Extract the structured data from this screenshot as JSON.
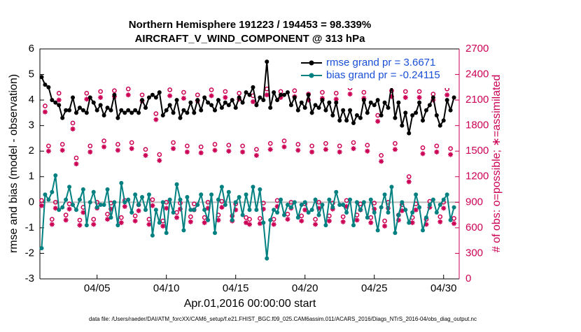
{
  "chart_data": {
    "type": "line",
    "title": "Northern Hemisphere 191223 / 194453 = 98.339%",
    "subtitle": "AIRCRAFT_V_WIND_COMPONENT @ 313 hPa",
    "xlabel": "Apr.01,2016 00:00:00 start",
    "ylabel": "rmse and bias (model - observation)",
    "y2label": "# of obs: o=possible; ∗=assimilated",
    "footnote": "data file: /Users/raeder/DAI/ATM_forcXX/CAM6_setup/f.e21.FHIST_BGC.f09_025.CAM6assim.011/ACARS_2016/Diags_NTrS_2016-04/obs_diag_output.nc",
    "xlim": [
      0.875,
      31.125
    ],
    "xticks": [
      {
        "value": 5,
        "label": "04/05"
      },
      {
        "value": 10,
        "label": "04/10"
      },
      {
        "value": 15,
        "label": "04/15"
      },
      {
        "value": 20,
        "label": "04/20"
      },
      {
        "value": 25,
        "label": "04/25"
      },
      {
        "value": 30,
        "label": "04/30"
      }
    ],
    "ylim": [
      -3,
      6
    ],
    "yticks": [
      -3,
      -2,
      -1,
      0,
      1,
      2,
      3,
      4,
      5,
      6
    ],
    "y2lim": [
      0,
      2700
    ],
    "y2ticks": [
      0,
      300,
      600,
      900,
      1200,
      1500,
      1800,
      2100,
      2400,
      2700
    ],
    "reference_line": 0,
    "legend": "upper right",
    "x": [
      1,
      1.25,
      1.5,
      1.75,
      2,
      2.25,
      2.5,
      2.75,
      3,
      3.25,
      3.5,
      3.75,
      4,
      4.25,
      4.5,
      4.75,
      5,
      5.25,
      5.5,
      5.75,
      6,
      6.25,
      6.5,
      6.75,
      7,
      7.25,
      7.5,
      7.75,
      8,
      8.25,
      8.5,
      8.75,
      9,
      9.25,
      9.5,
      9.75,
      10,
      10.25,
      10.5,
      10.75,
      11,
      11.25,
      11.5,
      11.75,
      12,
      12.25,
      12.5,
      12.75,
      13,
      13.25,
      13.5,
      13.75,
      14,
      14.25,
      14.5,
      14.75,
      15,
      15.25,
      15.5,
      15.75,
      16,
      16.25,
      16.5,
      16.75,
      17,
      17.25,
      17.5,
      17.75,
      18,
      18.25,
      18.5,
      18.75,
      19,
      19.25,
      19.5,
      19.75,
      20,
      20.25,
      20.5,
      20.75,
      21,
      21.25,
      21.5,
      21.75,
      22,
      22.25,
      22.5,
      22.75,
      23,
      23.25,
      23.5,
      23.75,
      24,
      24.25,
      24.5,
      24.75,
      25,
      25.25,
      25.5,
      25.75,
      26,
      26.25,
      26.5,
      26.75,
      27,
      27.25,
      27.5,
      27.75,
      28,
      28.25,
      28.5,
      28.75,
      29,
      29.25,
      29.5,
      29.75,
      30,
      30.25,
      30.5,
      30.75
    ],
    "series": [
      {
        "name": "rmse grand pr = 3.6671",
        "color": "#000000",
        "marker": "dot",
        "legend": true,
        "values": [
          4.9,
          4.6,
          4.5,
          4.0,
          3.9,
          3.8,
          3.3,
          3.6,
          3.6,
          4.1,
          3.5,
          3.7,
          3.6,
          3.5,
          4.1,
          3.9,
          3.6,
          3.8,
          3.4,
          3.7,
          3.6,
          4.2,
          3.3,
          3.6,
          3.5,
          3.6,
          3.5,
          3.6,
          3.5,
          4.0,
          3.7,
          4.1,
          4.2,
          4.1,
          4.3,
          3.4,
          3.6,
          3.8,
          3.5,
          4.0,
          3.3,
          3.6,
          3.5,
          3.9,
          3.5,
          4.0,
          3.6,
          4.1,
          3.9,
          3.8,
          3.6,
          4.0,
          3.7,
          3.9,
          3.8,
          4.0,
          3.7,
          4.1,
          3.9,
          4.3,
          4.2,
          4.5,
          3.8,
          4.1,
          4.0,
          5.5,
          3.7,
          4.3,
          4.0,
          4.2,
          4.2,
          4.3,
          3.8,
          4.1,
          3.6,
          3.9,
          3.7,
          4.2,
          3.5,
          3.8,
          3.7,
          4.0,
          3.6,
          3.9,
          3.4,
          3.9,
          3.2,
          3.6,
          3.2,
          3.6,
          3.1,
          3.4,
          3.3,
          4.0,
          3.5,
          3.9,
          3.8,
          4.0,
          3.4,
          3.9,
          3.7,
          4.6,
          3.3,
          3.9,
          3.0,
          3.5,
          2.7,
          3.4,
          3.5,
          3.9,
          3.2,
          3.6,
          3.8,
          4.1,
          3.4,
          3.0,
          3.2,
          4.0,
          3.6,
          4.1
        ]
      },
      {
        "name": "bias grand pr = -0.24115",
        "color": "#008080",
        "marker": "dot",
        "legend": true,
        "values": [
          -1.8,
          0.3,
          0.1,
          0.4,
          1.05,
          -0.3,
          -0.2,
          0.1,
          0.6,
          -0.1,
          -0.3,
          0.1,
          0.5,
          -0.9,
          0.0,
          0.4,
          -0.2,
          -0.1,
          -0.1,
          0.5,
          -0.6,
          0.0,
          -0.9,
          0.75,
          0.0,
          0.1,
          -0.4,
          0.3,
          -0.1,
          0.2,
          -0.3,
          0.3,
          -1.3,
          -0.3,
          -0.8,
          0.0,
          -1.2,
          0.1,
          -0.4,
          0.7,
          0.1,
          -1.1,
          0.2,
          -0.3,
          -0.3,
          -0.1,
          0.3,
          -0.3,
          -0.7,
          0.3,
          -1.2,
          0.1,
          0.6,
          -0.1,
          0.4,
          -0.7,
          0.0,
          0.2,
          -0.5,
          0.3,
          -0.3,
          0.6,
          -0.3,
          0.5,
          -0.8,
          -2.2,
          -0.7,
          -0.3,
          -0.4,
          0.1,
          -0.5,
          -0.1,
          -0.2,
          0.0,
          -0.6,
          -0.1,
          0.0,
          -0.4,
          -0.3,
          0.1,
          -0.5,
          -0.1,
          -0.9,
          0.1,
          -0.2,
          0.4,
          -0.1,
          -0.1,
          -0.4,
          0.1,
          -0.9,
          0.0,
          -0.3,
          0.0,
          -0.6,
          0.1,
          -0.4,
          -1.1,
          -0.2,
          0.3,
          -0.4,
          0.6,
          -1.2,
          -0.5,
          0.0,
          -0.3,
          -0.8,
          -0.4,
          0.3,
          -0.2,
          -1.1,
          -0.6,
          -0.1,
          0.1,
          -0.4,
          -0.1,
          0.1,
          0.3,
          -0.7,
          -0.2
        ]
      },
      {
        "name": "possible",
        "color": "#cc0055",
        "marker": "circle",
        "axis": "y2",
        "legend": false,
        "values": [
          920,
          2030,
          1560,
          700,
          900,
          2180,
          1580,
          750,
          880,
          1830,
          1420,
          690,
          840,
          2180,
          1560,
          700,
          900,
          2200,
          1620,
          760,
          890,
          2210,
          1580,
          720,
          920,
          2230,
          1600,
          740,
          870,
          2160,
          1520,
          700,
          930,
          1940,
          1460,
          680,
          900,
          2220,
          1600,
          780,
          890,
          2190,
          1560,
          730,
          880,
          2160,
          1550,
          720,
          900,
          2220,
          1580,
          750,
          910,
          2200,
          1570,
          740,
          880,
          2180,
          1560,
          720,
          700,
          2150,
          1520,
          710,
          890,
          2230,
          1590,
          700,
          920,
          2200,
          1620,
          760,
          900,
          2210,
          1580,
          740,
          880,
          2170,
          1560,
          700,
          900,
          2190,
          1590,
          740,
          890,
          2180,
          1560,
          730,
          920,
          2240,
          1600,
          750,
          880,
          2190,
          1570,
          720,
          890,
          1920,
          1450,
          680,
          900,
          2210,
          1590,
          750,
          870,
          2200,
          1200,
          720,
          880,
          2200,
          1540,
          700,
          910,
          2170,
          1560,
          730,
          900,
          2230,
          1530,
          710
        ]
      },
      {
        "name": "assimilated",
        "color": "#cc0055",
        "marker": "star",
        "axis": "y2",
        "legend": false,
        "values": [
          860,
          1960,
          1500,
          640,
          830,
          2100,
          1510,
          690,
          820,
          1760,
          1350,
          630,
          780,
          2110,
          1490,
          640,
          830,
          2130,
          1550,
          700,
          820,
          2140,
          1510,
          660,
          850,
          2160,
          1530,
          680,
          800,
          2090,
          1450,
          640,
          860,
          1870,
          1390,
          620,
          830,
          2150,
          1530,
          720,
          820,
          2120,
          1490,
          670,
          810,
          2090,
          1480,
          660,
          830,
          2150,
          1510,
          690,
          840,
          2130,
          1500,
          680,
          810,
          2110,
          1490,
          660,
          640,
          2080,
          1450,
          650,
          820,
          2160,
          1520,
          640,
          850,
          2130,
          1550,
          700,
          830,
          2140,
          1510,
          680,
          810,
          2100,
          1490,
          640,
          830,
          2120,
          1520,
          680,
          820,
          2110,
          1490,
          670,
          850,
          2170,
          1530,
          690,
          810,
          2120,
          1500,
          660,
          820,
          1850,
          1380,
          620,
          830,
          2140,
          1520,
          690,
          800,
          2130,
          1140,
          660,
          810,
          2130,
          1470,
          640,
          840,
          2100,
          1490,
          670,
          830,
          2160,
          1460,
          650
        ]
      }
    ]
  }
}
